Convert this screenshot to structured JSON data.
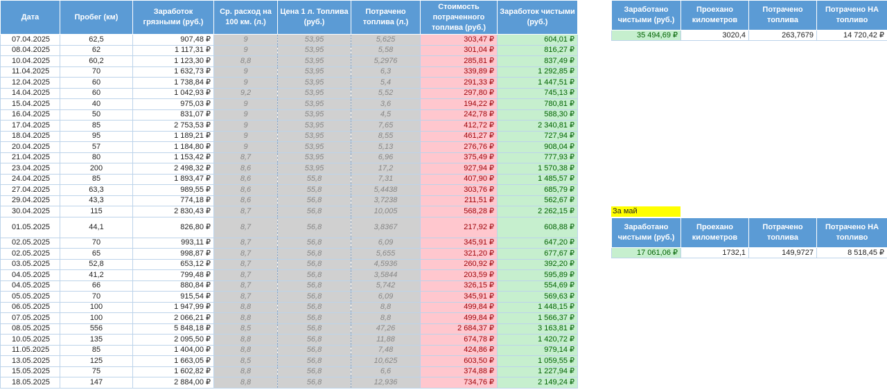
{
  "main_table": {
    "headers": [
      "Дата",
      "Пробег (км)",
      "Заработок грязными (руб.)",
      "Ср. расход на 100 км. (л.)",
      "Цена 1 л. Топлива (руб.)",
      "Потрачено топлива (л.)",
      "Стоимость потраченного топлива (руб.)",
      "Заработок чистыми (руб.)"
    ],
    "rows": [
      [
        "07.04.2025",
        "62,5",
        "907,48 ₽",
        "9",
        "53,95",
        "5,625",
        "303,47 ₽",
        "604,01 ₽"
      ],
      [
        "08.04.2025",
        "62",
        "1 117,31 ₽",
        "9",
        "53,95",
        "5,58",
        "301,04 ₽",
        "816,27 ₽"
      ],
      [
        "10.04.2025",
        "60,2",
        "1 123,30 ₽",
        "8,8",
        "53,95",
        "5,2976",
        "285,81 ₽",
        "837,49 ₽"
      ],
      [
        "11.04.2025",
        "70",
        "1 632,73 ₽",
        "9",
        "53,95",
        "6,3",
        "339,89 ₽",
        "1 292,85 ₽"
      ],
      [
        "12.04.2025",
        "60",
        "1 738,84 ₽",
        "9",
        "53,95",
        "5,4",
        "291,33 ₽",
        "1 447,51 ₽"
      ],
      [
        "14.04.2025",
        "60",
        "1 042,93 ₽",
        "9,2",
        "53,95",
        "5,52",
        "297,80 ₽",
        "745,13 ₽"
      ],
      [
        "15.04.2025",
        "40",
        "975,03 ₽",
        "9",
        "53,95",
        "3,6",
        "194,22 ₽",
        "780,81 ₽"
      ],
      [
        "16.04.2025",
        "50",
        "831,07 ₽",
        "9",
        "53,95",
        "4,5",
        "242,78 ₽",
        "588,30 ₽"
      ],
      [
        "17.04.2025",
        "85",
        "2 753,53 ₽",
        "9",
        "53,95",
        "7,65",
        "412,72 ₽",
        "2 340,81 ₽"
      ],
      [
        "18.04.2025",
        "95",
        "1 189,21 ₽",
        "9",
        "53,95",
        "8,55",
        "461,27 ₽",
        "727,94 ₽"
      ],
      [
        "20.04.2025",
        "57",
        "1 184,80 ₽",
        "9",
        "53,95",
        "5,13",
        "276,76 ₽",
        "908,04 ₽"
      ],
      [
        "21.04.2025",
        "80",
        "1 153,42 ₽",
        "8,7",
        "53,95",
        "6,96",
        "375,49 ₽",
        "777,93 ₽"
      ],
      [
        "23.04.2025",
        "200",
        "2 498,32 ₽",
        "8,6",
        "53,95",
        "17,2",
        "927,94 ₽",
        "1 570,38 ₽"
      ],
      [
        "24.04.2025",
        "85",
        "1 893,47 ₽",
        "8,6",
        "55,8",
        "7,31",
        "407,90 ₽",
        "1 485,57 ₽"
      ],
      [
        "27.04.2025",
        "63,3",
        "989,55 ₽",
        "8,6",
        "55,8",
        "5,4438",
        "303,76 ₽",
        "685,79 ₽"
      ],
      [
        "29.04.2025",
        "43,3",
        "774,18 ₽",
        "8,6",
        "56,8",
        "3,7238",
        "211,51 ₽",
        "562,67 ₽"
      ],
      [
        "30.04.2025",
        "115",
        "2 830,43 ₽",
        "8,7",
        "56,8",
        "10,005",
        "568,28 ₽",
        "2 262,15 ₽"
      ],
      [
        "01.05.2025",
        "44,1",
        "826,80 ₽",
        "8,7",
        "56,8",
        "3,8367",
        "217,92 ₽",
        "608,88 ₽"
      ],
      [
        "02.05.2025",
        "70",
        "993,11 ₽",
        "8,7",
        "56,8",
        "6,09",
        "345,91 ₽",
        "647,20 ₽"
      ],
      [
        "02.05.2025",
        "65",
        "998,87 ₽",
        "8,7",
        "56,8",
        "5,655",
        "321,20 ₽",
        "677,67 ₽"
      ],
      [
        "03.05.2025",
        "52,8",
        "653,12 ₽",
        "8,7",
        "56,8",
        "4,5936",
        "260,92 ₽",
        "392,20 ₽"
      ],
      [
        "04.05.2025",
        "41,2",
        "799,48 ₽",
        "8,7",
        "56,8",
        "3,5844",
        "203,59 ₽",
        "595,89 ₽"
      ],
      [
        "04.05.2025",
        "66",
        "880,84 ₽",
        "8,7",
        "56,8",
        "5,742",
        "326,15 ₽",
        "554,69 ₽"
      ],
      [
        "05.05.2025",
        "70",
        "915,54 ₽",
        "8,7",
        "56,8",
        "6,09",
        "345,91 ₽",
        "569,63 ₽"
      ],
      [
        "06.05.2025",
        "100",
        "1 947,99 ₽",
        "8,8",
        "56,8",
        "8,8",
        "499,84 ₽",
        "1 448,15 ₽"
      ],
      [
        "07.05.2025",
        "100",
        "2 066,21 ₽",
        "8,8",
        "56,8",
        "8,8",
        "499,84 ₽",
        "1 566,37 ₽"
      ],
      [
        "08.05.2025",
        "556",
        "5 848,18 ₽",
        "8,5",
        "56,8",
        "47,26",
        "2 684,37 ₽",
        "3 163,81 ₽"
      ],
      [
        "10.05.2025",
        "135",
        "2 095,50 ₽",
        "8,8",
        "56,8",
        "11,88",
        "674,78 ₽",
        "1 420,72 ₽"
      ],
      [
        "11.05.2025",
        "85",
        "1 404,00 ₽",
        "8,8",
        "56,8",
        "7,48",
        "424,86 ₽",
        "979,14 ₽"
      ],
      [
        "13.05.2025",
        "125",
        "1 663,05 ₽",
        "8,5",
        "56,8",
        "10,625",
        "603,50 ₽",
        "1 059,55 ₽"
      ],
      [
        "15.05.2025",
        "75",
        "1 602,82 ₽",
        "8,8",
        "56,8",
        "6,6",
        "374,88 ₽",
        "1 227,94 ₽"
      ],
      [
        "18.05.2025",
        "147",
        "2 884,00 ₽",
        "8,8",
        "56,8",
        "12,936",
        "734,76 ₽",
        "2 149,24 ₽"
      ]
    ]
  },
  "summary_total": {
    "headers": [
      "Заработано чистыми (руб.)",
      "Проехано километров",
      "Потрачено топлива",
      "Потрачено НА топливо"
    ],
    "values": [
      "35 494,69 ₽",
      "3020,4",
      "263,7679",
      "14 720,42 ₽"
    ]
  },
  "summary_may": {
    "label": "За май",
    "headers": [
      "Заработано чистыми (руб.)",
      "Проехано километров",
      "Потрачено топлива",
      "Потрачено НА топливо"
    ],
    "values": [
      "17 061,06 ₽",
      "1732,1",
      "149,9727",
      "8 518,45 ₽"
    ]
  },
  "colors": {
    "header_bg": "#5b9bd5",
    "gray_cells": "#d0d0d0",
    "cost_bg": "#ffc7ce",
    "cost_text": "#9c0006",
    "profit_bg": "#c6efce",
    "profit_text": "#006100",
    "may_label_bg": "#ffff00"
  }
}
